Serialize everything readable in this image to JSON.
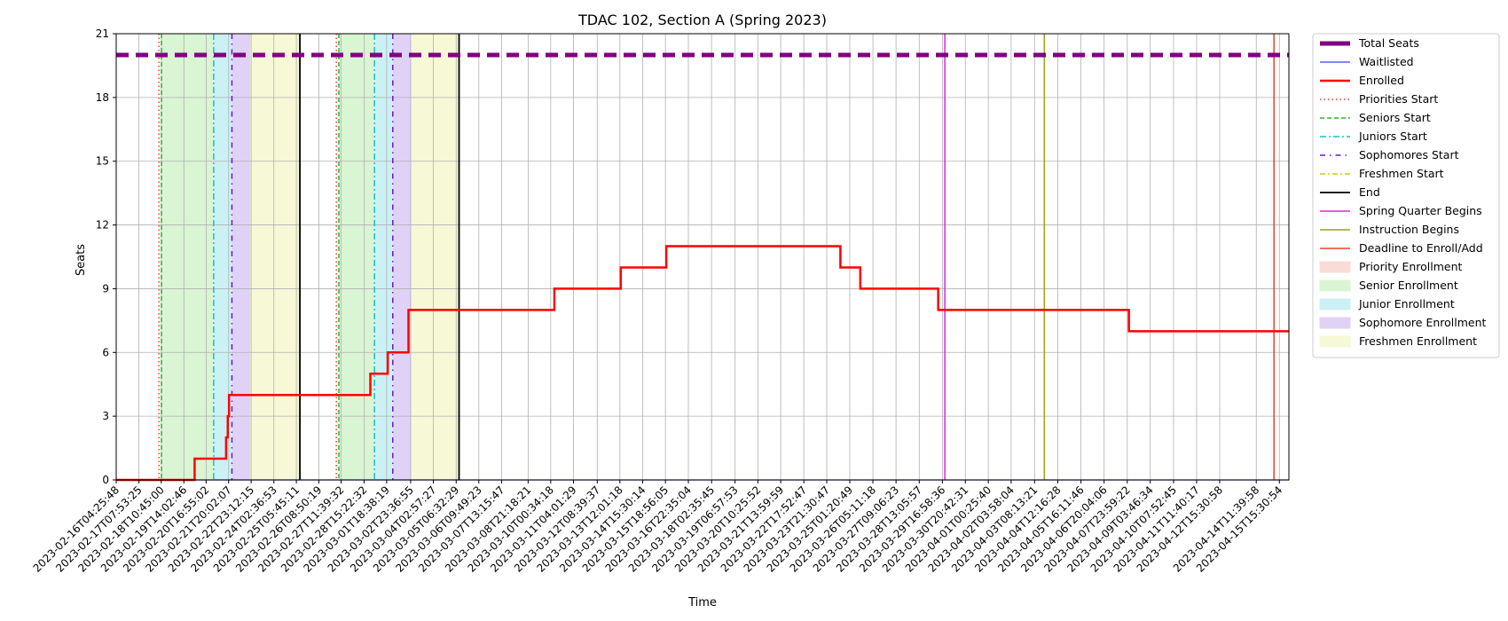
{
  "chart_data": {
    "type": "line",
    "title": "TDAC 102, Section A (Spring 2023)",
    "xlabel": "Time",
    "ylabel": "Seats",
    "ylim": [
      0,
      21
    ],
    "yticks": [
      0,
      3,
      6,
      9,
      12,
      15,
      18,
      21
    ],
    "xlim": [
      "2023-02-16T04:25:48",
      "2023-04-16T03:00:00"
    ],
    "grid": true,
    "legend_placement": "outside-right",
    "xtick_labels": [
      "2023-02-16T04:25:48",
      "2023-02-17T07:53:25",
      "2023-02-18T10:45:00",
      "2023-02-19T14:02:46",
      "2023-02-20T16:55:02",
      "2023-02-21T20:02:07",
      "2023-02-22T23:12:15",
      "2023-02-24T02:36:53",
      "2023-02-25T05:45:11",
      "2023-02-26T08:50:19",
      "2023-02-27T11:39:32",
      "2023-02-28T15:22:32",
      "2023-03-01T18:38:19",
      "2023-03-02T23:36:55",
      "2023-03-04T02:57:27",
      "2023-03-05T06:32:29",
      "2023-03-06T09:49:23",
      "2023-03-07T13:15:47",
      "2023-03-08T21:18:21",
      "2023-03-10T00:34:18",
      "2023-03-11T04:01:29",
      "2023-03-12T08:39:37",
      "2023-03-13T12:01:18",
      "2023-03-14T15:30:14",
      "2023-03-15T18:56:05",
      "2023-03-16T22:35:04",
      "2023-03-18T02:35:45",
      "2023-03-19T06:57:53",
      "2023-03-20T10:25:52",
      "2023-03-21T13:59:59",
      "2023-03-22T17:52:47",
      "2023-03-23T21:30:47",
      "2023-03-25T01:20:49",
      "2023-03-26T05:11:18",
      "2023-03-27T09:06:23",
      "2023-03-28T13:05:57",
      "2023-03-29T16:58:36",
      "2023-03-30T20:42:31",
      "2023-04-01T00:25:40",
      "2023-04-02T03:58:04",
      "2023-04-03T08:13:21",
      "2023-04-04T12:16:28",
      "2023-04-05T16:11:46",
      "2023-04-06T20:04:06",
      "2023-04-07T23:59:22",
      "2023-04-09T03:46:34",
      "2023-04-10T07:52:45",
      "2023-04-11T11:40:17",
      "2023-04-12T15:30:58",
      "2023-04-14T11:39:58",
      "2023-04-15T15:30:54"
    ],
    "shaded_regions": [
      {
        "name": "Senior Enrollment",
        "color": "#d9f5d3",
        "x": [
          "2023-02-18T10:45:00",
          "2023-02-21T02:00:00"
        ]
      },
      {
        "name": "Junior Enrollment",
        "color": "#ccf1f5",
        "x": [
          "2023-02-21T02:00:00",
          "2023-02-22T00:00:00"
        ]
      },
      {
        "name": "Sophomore Enrollment",
        "color": "#e0d2f7",
        "x": [
          "2023-02-22T00:00:00",
          "2023-02-22T22:00:00"
        ]
      },
      {
        "name": "Freshmen Enrollment",
        "color": "#f7f8d6",
        "x": [
          "2023-02-22T22:00:00",
          "2023-02-25T10:00:00"
        ]
      },
      {
        "name": "Senior Enrollment",
        "color": "#d9f5d3",
        "x": [
          "2023-02-27T09:00:00",
          "2023-03-01T04:00:00"
        ]
      },
      {
        "name": "Junior Enrollment",
        "color": "#ccf1f5",
        "x": [
          "2023-03-01T04:00:00",
          "2023-03-02T02:00:00"
        ]
      },
      {
        "name": "Sophomore Enrollment",
        "color": "#e0d2f7",
        "x": [
          "2023-03-02T02:00:00",
          "2023-03-03T00:00:00"
        ]
      },
      {
        "name": "Freshmen Enrollment",
        "color": "#f7f8d6",
        "x": [
          "2023-03-03T00:00:00",
          "2023-03-05T10:00:00"
        ]
      }
    ],
    "vertical_markers": [
      {
        "name": "Priorities Start",
        "x": "2023-02-18T08:00:00",
        "color": "#e8412b",
        "dash": "1.5 3"
      },
      {
        "name": "Seniors Start",
        "x": "2023-02-18T11:00:00",
        "color": "#2ab52a",
        "dash": "5 3"
      },
      {
        "name": "Juniors Start",
        "x": "2023-02-21T02:00:00",
        "color": "#17becf",
        "dash": "7 3 2 3"
      },
      {
        "name": "Sophomores Start",
        "x": "2023-02-22T00:00:00",
        "color": "#6a14d6",
        "dash": "6 5 1.5 5"
      },
      {
        "name": "End",
        "x": "2023-02-25T10:00:00",
        "color": "#000000",
        "dash": ""
      },
      {
        "name": "Priorities Start",
        "x": "2023-02-27T06:00:00",
        "color": "#e8412b",
        "dash": "1.5 3"
      },
      {
        "name": "Seniors Start",
        "x": "2023-02-27T09:00:00",
        "color": "#2ab52a",
        "dash": "5 3"
      },
      {
        "name": "Juniors Start",
        "x": "2023-03-01T04:00:00",
        "color": "#17becf",
        "dash": "7 3 2 3"
      },
      {
        "name": "Sophomores Start",
        "x": "2023-03-02T02:00:00",
        "color": "#6a14d6",
        "dash": "6 5 1.5 5"
      },
      {
        "name": "End",
        "x": "2023-03-05T10:00:00",
        "color": "#000000",
        "dash": ""
      },
      {
        "name": "Spring Quarter Begins",
        "x": "2023-03-29T20:00:00",
        "color": "#d62ad6",
        "dash": ""
      },
      {
        "name": "Instruction Begins",
        "x": "2023-04-03T20:00:00",
        "color": "#9aa314",
        "dash": ""
      },
      {
        "name": "Deadline to Enroll/Add",
        "x": "2023-04-15T09:00:00",
        "color": "#e8412b",
        "dash": ""
      }
    ],
    "series": [
      {
        "name": "Total Seats",
        "color": "#800080",
        "x": [
          "2023-02-16T04:25:48",
          "2023-04-16T03:00:00"
        ],
        "y": [
          20,
          20
        ]
      },
      {
        "name": "Waitlisted",
        "color": "#3340e6",
        "x": [
          "2023-02-16T04:25:48",
          "2023-04-16T03:00:00"
        ],
        "y": [
          0,
          0
        ]
      },
      {
        "name": "Enrolled",
        "color": "#ff0000",
        "x": [
          "2023-02-16T04:25:48",
          "2023-02-20T03:00:00",
          "2023-02-21T17:00:00",
          "2023-02-21T19:00:00",
          "2023-02-21T20:30:00",
          "2023-02-28T23:00:00",
          "2023-03-01T20:00:00",
          "2023-03-02T21:00:00",
          "2023-03-10T05:00:00",
          "2023-03-13T13:00:00",
          "2023-03-15T20:00:00",
          "2023-03-24T14:00:00",
          "2023-03-25T14:00:00",
          "2023-03-29T12:00:00",
          "2023-04-08T02:00:00",
          "2023-04-16T03:00:00"
        ],
        "y": [
          0,
          1,
          2,
          3,
          4,
          5,
          6,
          8,
          9,
          10,
          11,
          10,
          9,
          8,
          7,
          7
        ]
      }
    ],
    "legend": [
      "Total Seats",
      "Waitlisted",
      "Enrolled",
      "Priorities Start",
      "Seniors Start",
      "Juniors Start",
      "Sophomores Start",
      "Freshmen Start",
      "End",
      "Spring Quarter Begins",
      "Instruction Begins",
      "Deadline to Enroll/Add",
      "Priority Enrollment",
      "Senior Enrollment",
      "Junior Enrollment",
      "Sophomore Enrollment",
      "Freshmen Enrollment"
    ],
    "legend_styles": [
      {
        "type": "line",
        "color": "#800080",
        "dash": "",
        "width": 5
      },
      {
        "type": "line",
        "color": "#3340e6",
        "dash": "",
        "width": 1.2
      },
      {
        "type": "line",
        "color": "#ff0000",
        "dash": "",
        "width": 2.5
      },
      {
        "type": "line",
        "color": "#e8412b",
        "dash": "1.5 3",
        "width": 1.5
      },
      {
        "type": "line",
        "color": "#2ab52a",
        "dash": "5 3",
        "width": 1.5
      },
      {
        "type": "line",
        "color": "#17becf",
        "dash": "7 3 2 3",
        "width": 1.5
      },
      {
        "type": "line",
        "color": "#6a14d6",
        "dash": "6 5 1.5 5",
        "width": 1.5
      },
      {
        "type": "line",
        "color": "#d4c419",
        "dash": "6 3 2 3",
        "width": 1.5
      },
      {
        "type": "line",
        "color": "#000000",
        "dash": "",
        "width": 1.8
      },
      {
        "type": "line",
        "color": "#d62ad6",
        "dash": "",
        "width": 1.5
      },
      {
        "type": "line",
        "color": "#9aa314",
        "dash": "",
        "width": 1.5
      },
      {
        "type": "line",
        "color": "#e8412b",
        "dash": "",
        "width": 1.5
      },
      {
        "type": "patch",
        "color": "#f9dcd5"
      },
      {
        "type": "patch",
        "color": "#d9f5d3"
      },
      {
        "type": "patch",
        "color": "#ccf1f5"
      },
      {
        "type": "patch",
        "color": "#e0d2f7"
      },
      {
        "type": "patch",
        "color": "#f7f8d6"
      }
    ]
  }
}
